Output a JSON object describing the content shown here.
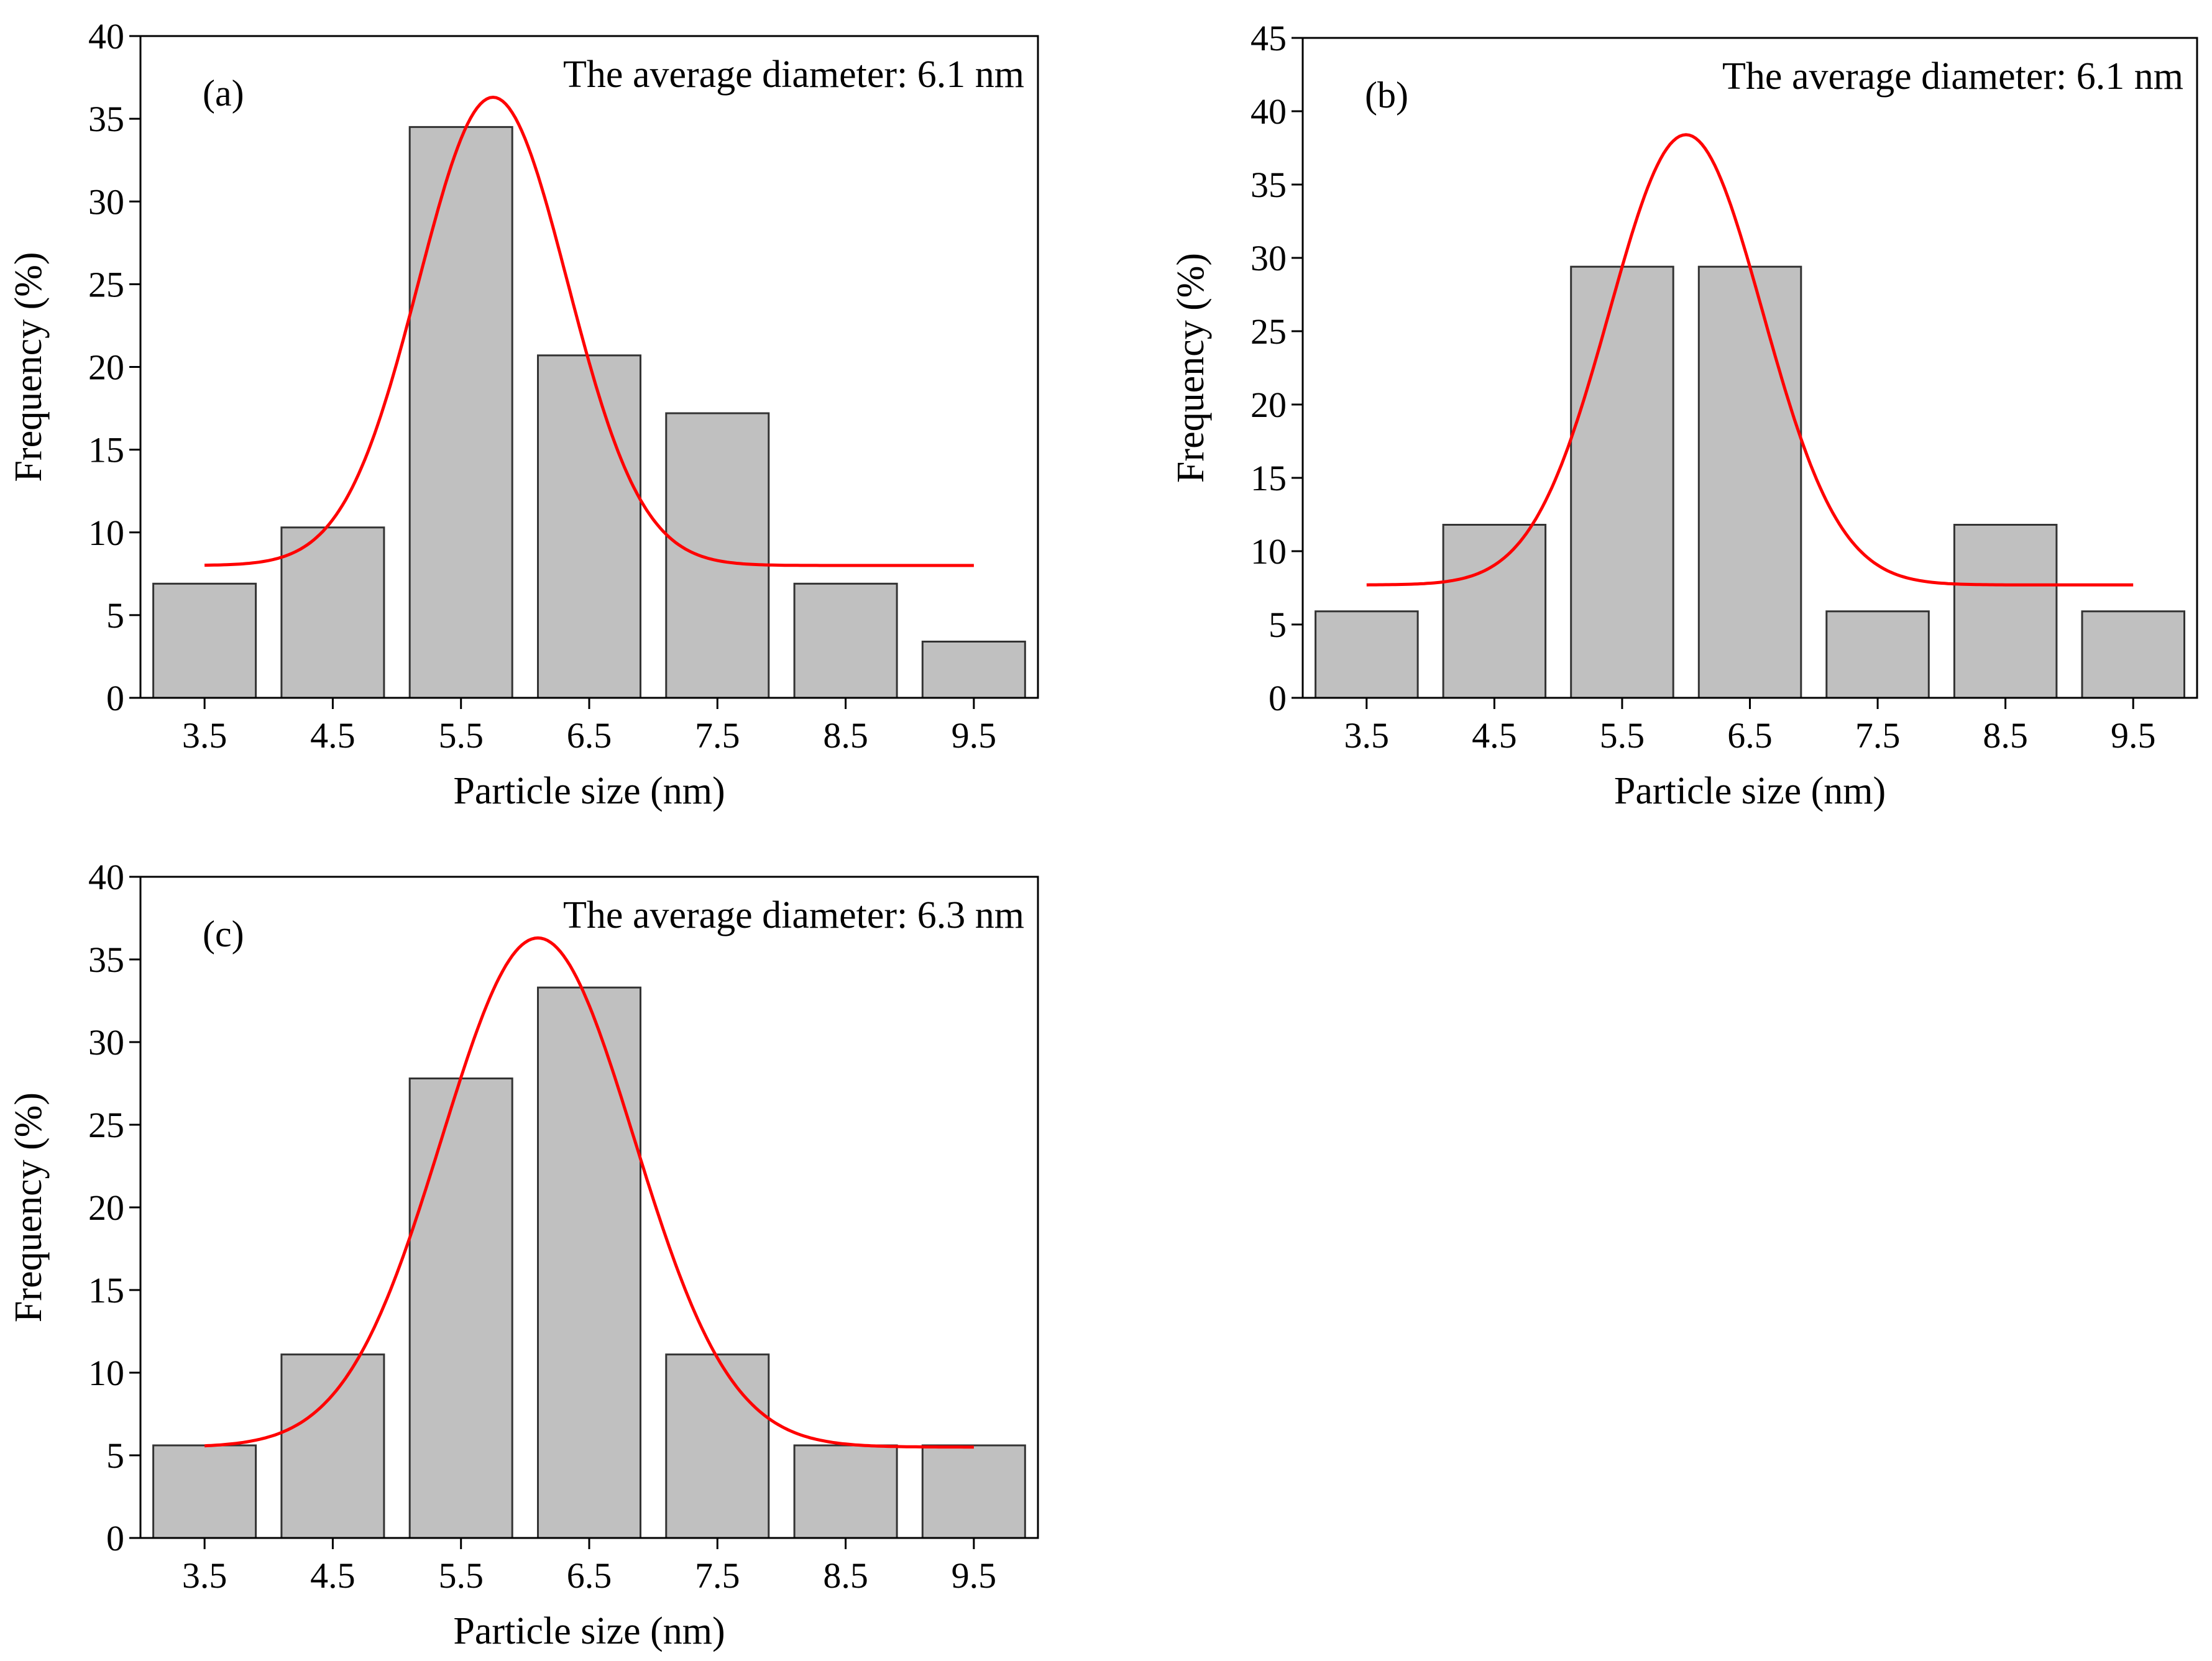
{
  "colors": {
    "bar_fill": "#c0c0c0",
    "bar_stroke": "#333333",
    "fit_line": "#ff0000",
    "axis": "#000000"
  },
  "chart_data": [
    {
      "type": "bar",
      "panel_label": "(a)",
      "annotation": "The average diameter: 6.1 nm",
      "xlabel": "Particle size (nm)",
      "ylabel": "Frequency (%)",
      "categories": [
        "3.5",
        "4.5",
        "5.5",
        "6.5",
        "7.5",
        "8.5",
        "9.5"
      ],
      "values": [
        6.9,
        10.3,
        34.5,
        20.7,
        17.2,
        6.9,
        3.4
      ],
      "ylim": [
        0,
        40
      ],
      "yticks": [
        "0",
        "5",
        "10",
        "15",
        "20",
        "25",
        "30",
        "35",
        "40"
      ],
      "grid": false,
      "fit_curve": {
        "type": "gaussian",
        "baseline": 8.0,
        "amplitude": 28.3,
        "center": 5.75,
        "sigma": 0.58,
        "x_range": [
          3.5,
          9.5
        ]
      }
    },
    {
      "type": "bar",
      "panel_label": "(b)",
      "annotation": "The average diameter: 6.1 nm",
      "xlabel": "Particle size (nm)",
      "ylabel": "Frequency (%)",
      "categories": [
        "3.5",
        "4.5",
        "5.5",
        "6.5",
        "7.5",
        "8.5",
        "9.5"
      ],
      "values": [
        5.9,
        11.8,
        29.4,
        29.4,
        5.9,
        11.8,
        5.9
      ],
      "ylim": [
        0,
        45
      ],
      "yticks": [
        "0",
        "5",
        "10",
        "15",
        "20",
        "25",
        "30",
        "35",
        "40",
        "45"
      ],
      "grid": false,
      "fit_curve": {
        "type": "gaussian",
        "baseline": 7.7,
        "amplitude": 30.7,
        "center": 6.0,
        "sigma": 0.6,
        "x_range": [
          3.5,
          9.5
        ]
      }
    },
    {
      "type": "bar",
      "panel_label": "(c)",
      "annotation": "The average diameter: 6.3 nm",
      "xlabel": "Particle size (nm)",
      "ylabel": "Frequency (%)",
      "categories": [
        "3.5",
        "4.5",
        "5.5",
        "6.5",
        "7.5",
        "8.5",
        "9.5"
      ],
      "values": [
        5.6,
        11.1,
        27.8,
        33.3,
        11.1,
        5.6,
        5.6
      ],
      "ylim": [
        0,
        40
      ],
      "yticks": [
        "0",
        "5",
        "10",
        "15",
        "20",
        "25",
        "30",
        "35",
        "40"
      ],
      "grid": false,
      "fit_curve": {
        "type": "gaussian",
        "baseline": 5.5,
        "amplitude": 30.8,
        "center": 6.1,
        "sigma": 0.75,
        "x_range": [
          3.5,
          9.5
        ]
      }
    }
  ]
}
